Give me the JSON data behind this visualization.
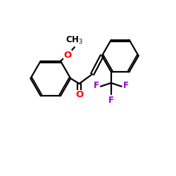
{
  "bg_color": "#ffffff",
  "bond_color": "#000000",
  "O_color": "#ff0000",
  "F_color": "#9400d3",
  "figsize": [
    2.5,
    2.5
  ],
  "dpi": 100,
  "xlim": [
    0,
    10
  ],
  "ylim": [
    0,
    10
  ]
}
